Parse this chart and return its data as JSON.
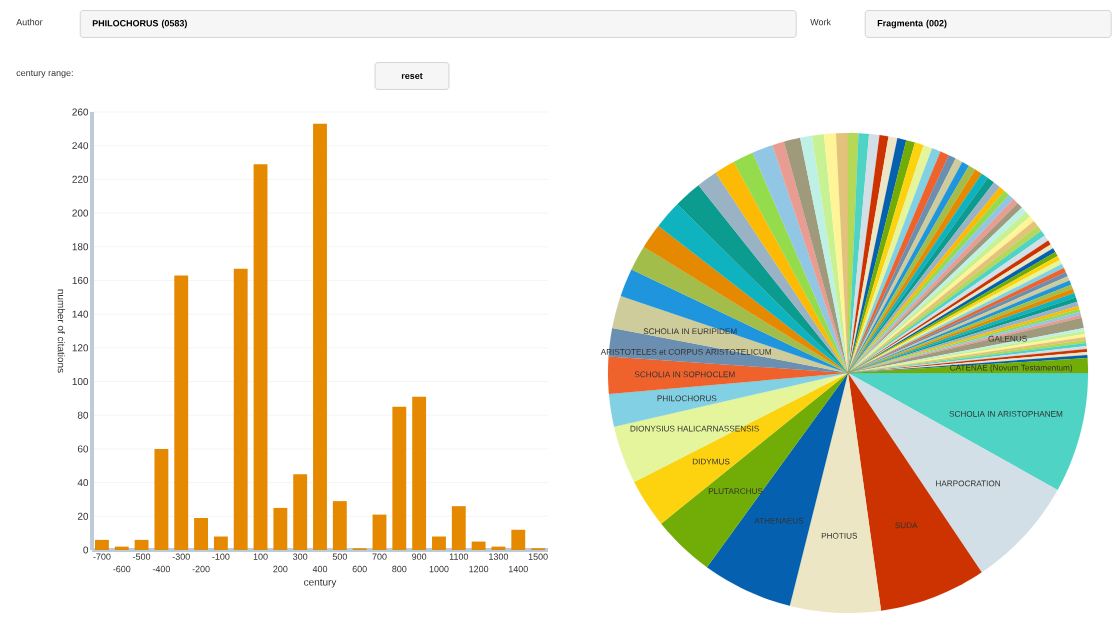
{
  "chart_data": [
    {
      "type": "bar",
      "xlabel": "century",
      "ylabel": "number of citations",
      "categories": [
        "-700",
        "-600",
        "-500",
        "-400",
        "-300",
        "-200",
        "-100",
        null,
        "100",
        "200",
        "300",
        "400",
        "500",
        "600",
        "700",
        "800",
        "900",
        "1000",
        "1100",
        "1200",
        "1300",
        "1400",
        "1500"
      ],
      "values": [
        6,
        2,
        6,
        60,
        163,
        19,
        8,
        167,
        229,
        25,
        45,
        253,
        29,
        1,
        21,
        85,
        91,
        8,
        26,
        5,
        2,
        12,
        1
      ],
      "color": "#e58a00",
      "ylim": [
        0,
        260
      ],
      "yticks": [
        0,
        20,
        40,
        60,
        80,
        100,
        120,
        140,
        160,
        180,
        200,
        220,
        240,
        260
      ],
      "grid": "y",
      "annotations": [
        "Author",
        "PHILOCHORUS (0583)",
        "Work",
        "Fragmenta (002)",
        "century range:",
        "reset"
      ]
    },
    {
      "type": "pie",
      "categories": [
        "SCHOLIA IN ARISTOPHANEM",
        "HARPOCRATION",
        "SUDA",
        "PHOTIUS",
        "ATHENAEUS",
        "PLUTARCHUS",
        "DIDYMUS",
        "DIONYSIUS HALICARNASSENSIS",
        "PHILOCHORUS",
        "SCHOLIA IN SOPHOCLEM",
        "ARISTOTELES et CORPUS ARISTOTELICUM",
        "SCHOLIA IN EURIPIDEM",
        null,
        null,
        null,
        null,
        null,
        null,
        null,
        null,
        null,
        null,
        null,
        null,
        null,
        null,
        null,
        null,
        null,
        null,
        null,
        null,
        null,
        null,
        null,
        null,
        null,
        null,
        null,
        null,
        null,
        null,
        null,
        null,
        null,
        null,
        null,
        null,
        null,
        null,
        null,
        null,
        null,
        null,
        null,
        null,
        null,
        null,
        null,
        null,
        null,
        null,
        null,
        null,
        null,
        null,
        null,
        null,
        null,
        null,
        null,
        null,
        null,
        null,
        null,
        null,
        null,
        null,
        "GALENUS",
        null,
        null,
        null,
        null,
        null,
        null,
        null,
        null,
        null,
        null,
        "CATENAE (Novum Testamentum)"
      ],
      "values": [
        8.1,
        7.5,
        7.2,
        6.1,
        6.1,
        4.2,
        3.3,
        3.9,
        2.2,
        2.5,
        1.9,
        2.2,
        1.9,
        1.7,
        1.7,
        1.9,
        1.9,
        1.4,
        1.4,
        1.4,
        1.4,
        0.8,
        1.1,
        0.8,
        0.8,
        0.8,
        0.8,
        0.7,
        0.7,
        0.7,
        0.6,
        0.6,
        0.6,
        0.6,
        0.6,
        0.6,
        0.6,
        0.6,
        0.5,
        0.5,
        0.5,
        0.5,
        0.5,
        0.5,
        0.5,
        0.5,
        0.4,
        0.4,
        0.4,
        0.4,
        0.4,
        0.4,
        0.4,
        0.4,
        0.4,
        0.4,
        0.4,
        0.4,
        0.3,
        0.3,
        0.3,
        0.3,
        0.3,
        0.3,
        0.3,
        0.3,
        0.3,
        0.3,
        0.3,
        0.3,
        0.3,
        0.3,
        0.3,
        0.3,
        0.2,
        0.2,
        0.2,
        0.2,
        0.7,
        0.2,
        0.2,
        0.2,
        0.2,
        0.2,
        0.2,
        0.2,
        0.2,
        0.2,
        0.2,
        1.0
      ],
      "colors": [
        "#4fd3c5",
        "#d2dfe6",
        "#cc3300",
        "#ede6c4",
        "#0560b0",
        "#72ad07",
        "#fdd20f",
        "#e5f59b",
        "#82d0e3",
        "#f0622c",
        "#6b8fb0",
        "#cfcc9c",
        "#1e95dc",
        "#a3bd4a",
        "#e58a00",
        "#0fb3c0",
        "#0c9b8f",
        "#9ab3c4",
        "#fcba04",
        "#94dc4c",
        "#91c6e4",
        "#e89c92",
        "#9f9a7c",
        "#bff0e6",
        "#c6f293",
        "#fff598",
        "#e3c27c",
        "#b5d856",
        "#4fd3c5",
        "#d2dfe6",
        "#cc3300",
        "#ede6c4",
        "#0560b0",
        "#72ad07",
        "#fdd20f",
        "#e5f59b",
        "#82d0e3",
        "#f0622c",
        "#6b8fb0",
        "#cfcc9c",
        "#1e95dc",
        "#a3bd4a",
        "#e58a00",
        "#0fb3c0",
        "#0c9b8f",
        "#9ab3c4",
        "#fcba04",
        "#94dc4c",
        "#91c6e4",
        "#e89c92",
        "#9f9a7c",
        "#bff0e6",
        "#c6f293",
        "#fff598",
        "#e3c27c",
        "#b5d856",
        "#4fd3c5",
        "#d2dfe6",
        "#cc3300",
        "#ede6c4",
        "#0560b0",
        "#72ad07",
        "#fdd20f",
        "#e5f59b",
        "#82d0e3",
        "#f0622c",
        "#6b8fb0",
        "#cfcc9c",
        "#1e95dc",
        "#a3bd4a",
        "#e58a00",
        "#0fb3c0",
        "#0c9b8f",
        "#9ab3c4",
        "#fcba04",
        "#94dc4c",
        "#91c6e4",
        "#e89c92",
        "#9f9a7c",
        "#bff0e6",
        "#c6f293",
        "#fff598",
        "#e3c27c",
        "#b5d856",
        "#4fd3c5",
        "#d2dfe6",
        "#cc3300",
        "#ede6c4",
        "#0560b0",
        "#72ad07"
      ]
    }
  ]
}
